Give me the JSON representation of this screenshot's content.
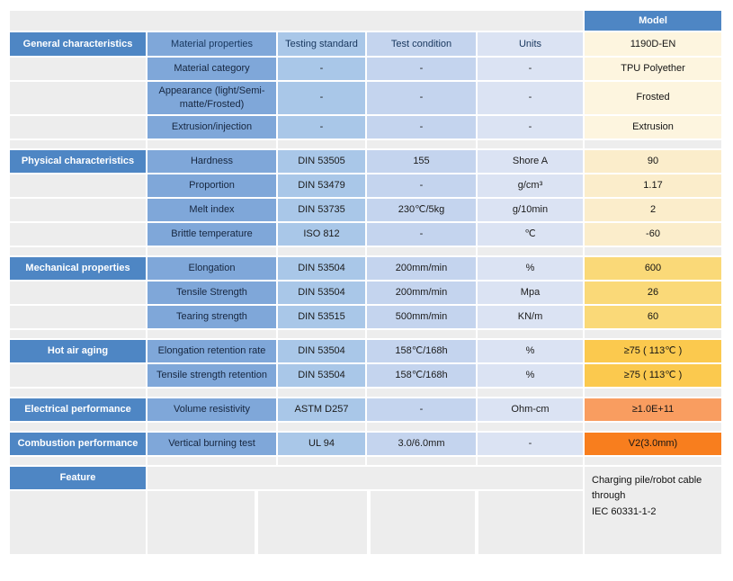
{
  "colors": {
    "category_bg": "#4E86C4",
    "property_bg": "#7FA7D9",
    "standard_bg": "#A9C7E8",
    "condition_bg": "#C4D4EE",
    "units_bg": "#DBE3F3",
    "spacer_bg": "#EDEDED",
    "header_text": "#17365D",
    "value_general_bg": "#FDF5DF",
    "value_physical_bg": "#FBEDCB",
    "value_mechanical_bg": "#FAD978",
    "value_hot_air_bg": "#FBC94E",
    "value_electrical_bg": "#F99D60",
    "value_combustion_bg": "#F87E1E"
  },
  "model_header": "Model",
  "header_row": {
    "category": "General characteristics",
    "columns": [
      "Material properties",
      "Testing standard",
      "Test condition",
      "Units"
    ],
    "model_value": "1190D-EN"
  },
  "sections": [
    {
      "label": "",
      "value_bg": "#FDF5DF",
      "rows": [
        {
          "property": "Material category",
          "standard": "-",
          "condition": "-",
          "units": "-",
          "value": "TPU Polyether"
        },
        {
          "property": "Appearance (light/Semi-matte/Frosted)",
          "standard": "-",
          "condition": "-",
          "units": "-",
          "value": "Frosted"
        },
        {
          "property": "Extrusion/injection",
          "standard": "-",
          "condition": "-",
          "units": "-",
          "value": "Extrusion"
        }
      ]
    },
    {
      "label": "Physical characteristics",
      "value_bg": "#FBEDCB",
      "rows": [
        {
          "property": "Hardness",
          "standard": "DIN 53505",
          "condition": "155",
          "units": "Shore A",
          "value": "90"
        },
        {
          "property": "Proportion",
          "standard": "DIN 53479",
          "condition": "-",
          "units": "g/cm³",
          "value": "1.17"
        },
        {
          "property": "Melt index",
          "standard": "DIN 53735",
          "condition": "230℃/5kg",
          "units": "g/10min",
          "value": "2"
        },
        {
          "property": "Brittle temperature",
          "standard": "ISO 812",
          "condition": "-",
          "units": "℃",
          "value": "-60"
        }
      ]
    },
    {
      "label": "Mechanical properties",
      "value_bg": "#FAD978",
      "rows": [
        {
          "property": "Elongation",
          "standard": "DIN 53504",
          "condition": "200mm/min",
          "units": "%",
          "value": "600"
        },
        {
          "property": "Tensile Strength",
          "standard": "DIN 53504",
          "condition": "200mm/min",
          "units": "Mpa",
          "value": "26"
        },
        {
          "property": "Tearing strength",
          "standard": "DIN 53515",
          "condition": "500mm/min",
          "units": "KN/m",
          "value": "60"
        }
      ]
    },
    {
      "label": "Hot air aging",
      "value_bg": "#FBC94E",
      "rows": [
        {
          "property": "Elongation retention rate",
          "standard": "DIN 53504",
          "condition": "158℃/168h",
          "units": "%",
          "value": "≥75 ( 113℃ )"
        },
        {
          "property": "Tensile strength retention",
          "standard": "DIN 53504",
          "condition": "158℃/168h",
          "units": "%",
          "value": "≥75 ( 113℃ )"
        }
      ]
    },
    {
      "label": "Electrical performance",
      "value_bg": "#F99D60",
      "rows": [
        {
          "property": "Volume resistivity",
          "standard": "ASTM D257",
          "condition": "-",
          "units": "Ohm-cm",
          "value": "≥1.0E+11"
        }
      ]
    },
    {
      "label": "Combustion performance",
      "value_bg": "#F87E1E",
      "rows": [
        {
          "property": "Vertical burning test",
          "standard": "UL 94",
          "condition": "3.0/6.0mm",
          "units": "-",
          "value": "V2(3.0mm)"
        }
      ]
    }
  ],
  "feature": {
    "label": "Feature",
    "value_lines": [
      "Charging pile/robot cable through",
      "IEC 60331-1-2"
    ]
  }
}
